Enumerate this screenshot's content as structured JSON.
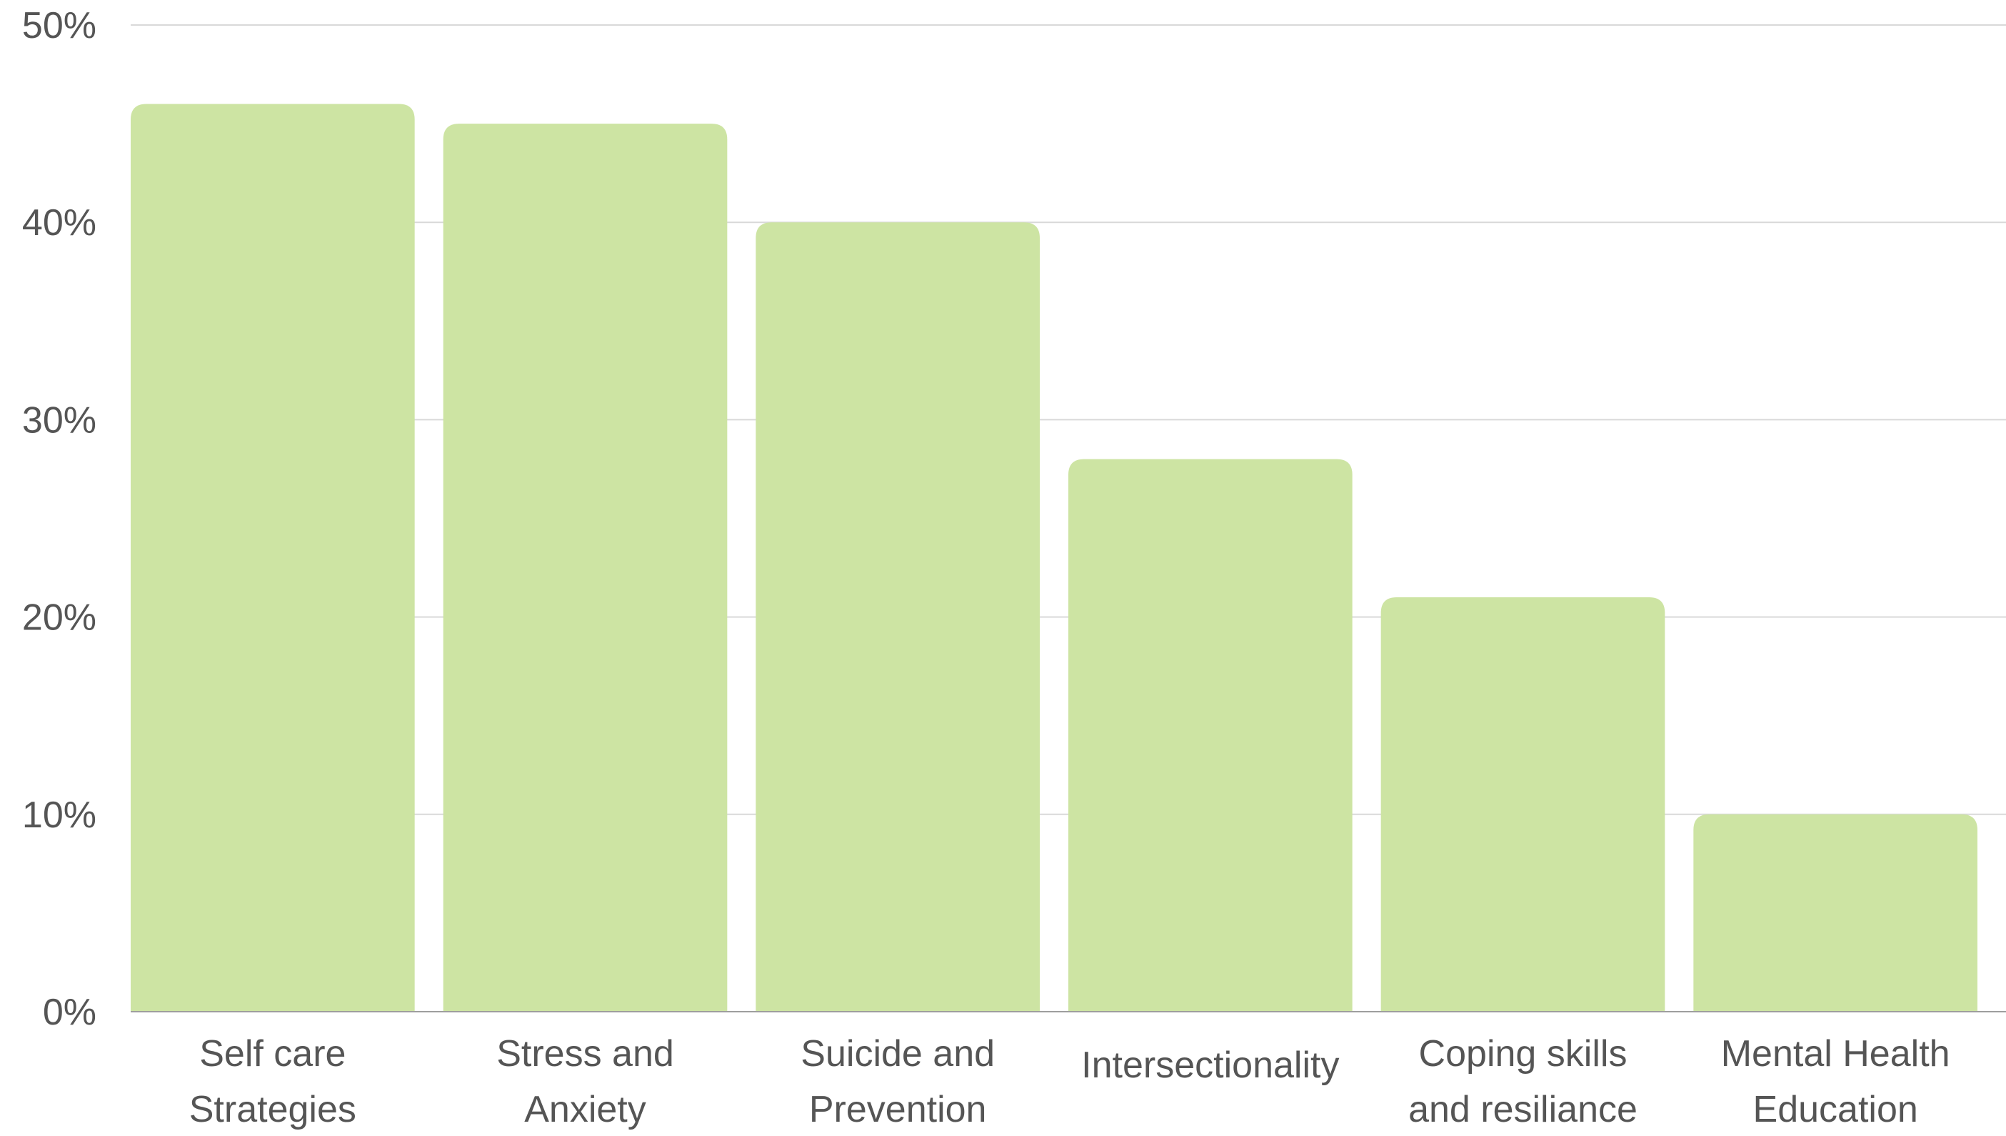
{
  "chart_data": {
    "type": "bar",
    "title": "",
    "xlabel": "",
    "ylabel": "",
    "categories": [
      [
        "Self care",
        "Strategies"
      ],
      [
        "Stress and",
        "Anxiety"
      ],
      [
        "Suicide and",
        "Prevention"
      ],
      [
        "Intersectionality"
      ],
      [
        "Coping skills",
        "and resiliance"
      ],
      [
        "Mental Health",
        "Education"
      ]
    ],
    "values": [
      46,
      45,
      40,
      28,
      21,
      10
    ],
    "ylim": [
      0,
      50
    ],
    "yticks": [
      0,
      10,
      20,
      30,
      40,
      50
    ],
    "ytick_labels": [
      "0%",
      "10%",
      "20%",
      "30%",
      "40%",
      "50%"
    ],
    "grid": true,
    "legend": "none",
    "colors": {
      "bar": "#cde4a3",
      "grid": "#d9d9d9",
      "axis": "#9e9e9e",
      "text": "#555555"
    }
  }
}
